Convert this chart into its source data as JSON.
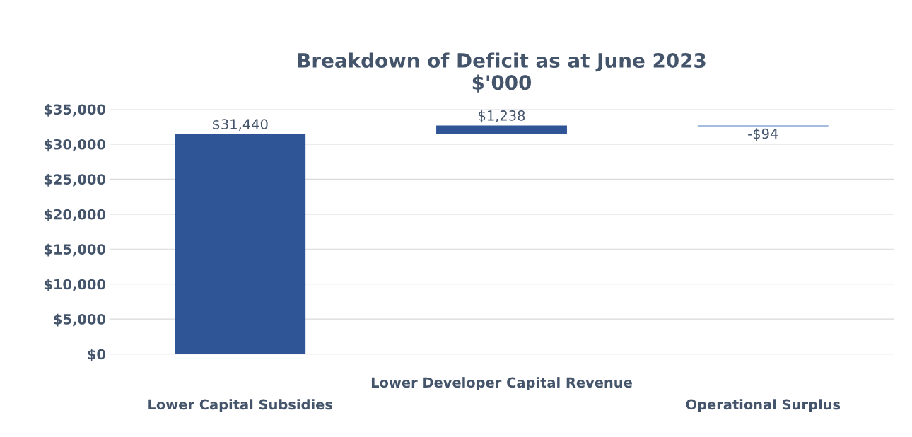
{
  "chart_data": {
    "type": "bar",
    "title": "Breakdown of Deficit as at June 2023\n$'000",
    "categories": [
      "Lower Capital Subsidies",
      "Lower Developer Capital Revenue",
      "Operational Surplus"
    ],
    "values": [
      31440,
      1238,
      -94
    ],
    "base": [
      0,
      31440,
      32678
    ],
    "colors": [
      "#2f5597",
      "#2f5597",
      "#4a7cc0"
    ],
    "value_labels": [
      "$31,440",
      "$1,238",
      "-$94"
    ],
    "ylim": [
      0,
      35000
    ],
    "yticks": [
      {
        "value": 0,
        "label": "$0"
      },
      {
        "value": 5000,
        "label": "$5,000"
      },
      {
        "value": 10000,
        "label": "$10,000"
      },
      {
        "value": 15000,
        "label": "$15,000"
      },
      {
        "value": 20000,
        "label": "$20,000"
      },
      {
        "value": 25000,
        "label": "$25,000"
      },
      {
        "value": 30000,
        "label": "$30,000"
      },
      {
        "value": 35000,
        "label": "$35,000"
      }
    ],
    "grid": "y"
  }
}
